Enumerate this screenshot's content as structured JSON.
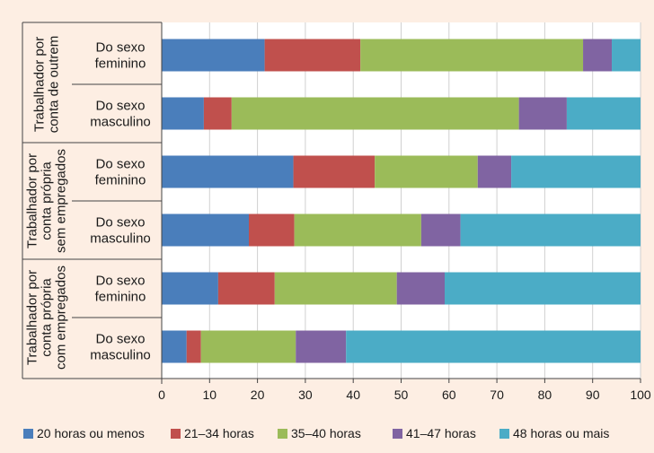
{
  "chart_data": {
    "type": "bar",
    "orientation": "horizontal",
    "stacked": true,
    "title": "",
    "xlabel": "",
    "ylabel": "",
    "xlim": [
      0,
      100
    ],
    "xticks": [
      "0",
      "10",
      "20",
      "30",
      "40",
      "50",
      "60",
      "70",
      "80",
      "90",
      "100"
    ],
    "grid": true,
    "legend_position": "bottom",
    "groups": [
      {
        "label_lines": [
          "Trabalhador por",
          "conta de outrem"
        ]
      },
      {
        "label_lines": [
          "Trabalhador por",
          "conta própria",
          "sem empregados"
        ]
      },
      {
        "label_lines": [
          "Trabalhador por",
          "conta própria",
          "com empregados"
        ]
      }
    ],
    "rows": [
      {
        "group": 0,
        "label_lines": [
          "Do sexo",
          "feminino"
        ]
      },
      {
        "group": 0,
        "label_lines": [
          "Do sexo",
          "masculino"
        ]
      },
      {
        "group": 1,
        "label_lines": [
          "Do sexo",
          "feminino"
        ]
      },
      {
        "group": 1,
        "label_lines": [
          "Do sexo",
          "masculino"
        ]
      },
      {
        "group": 2,
        "label_lines": [
          "Do sexo",
          "feminino"
        ]
      },
      {
        "group": 2,
        "label_lines": [
          "Do sexo",
          "masculino"
        ]
      }
    ],
    "series": [
      {
        "name": "20 horas ou menos",
        "color": "#4a7ebb",
        "values": [
          21.5,
          8.8,
          27.5,
          18.2,
          11.8,
          5.2
        ]
      },
      {
        "name": "21–34 horas",
        "color": "#c0504d",
        "values": [
          20.0,
          5.8,
          17.0,
          9.5,
          11.8,
          3.0
        ]
      },
      {
        "name": "35–40 horas",
        "color": "#9bbb59",
        "values": [
          46.5,
          60.0,
          21.5,
          26.5,
          25.5,
          19.8
        ]
      },
      {
        "name": "41–47 horas",
        "color": "#8064a2",
        "values": [
          6.0,
          10.0,
          7.0,
          8.2,
          10.0,
          10.5
        ]
      },
      {
        "name": "48 horas ou mais",
        "color": "#4bacc6",
        "values": [
          6.0,
          15.4,
          27.0,
          37.6,
          40.9,
          61.5
        ]
      }
    ]
  }
}
